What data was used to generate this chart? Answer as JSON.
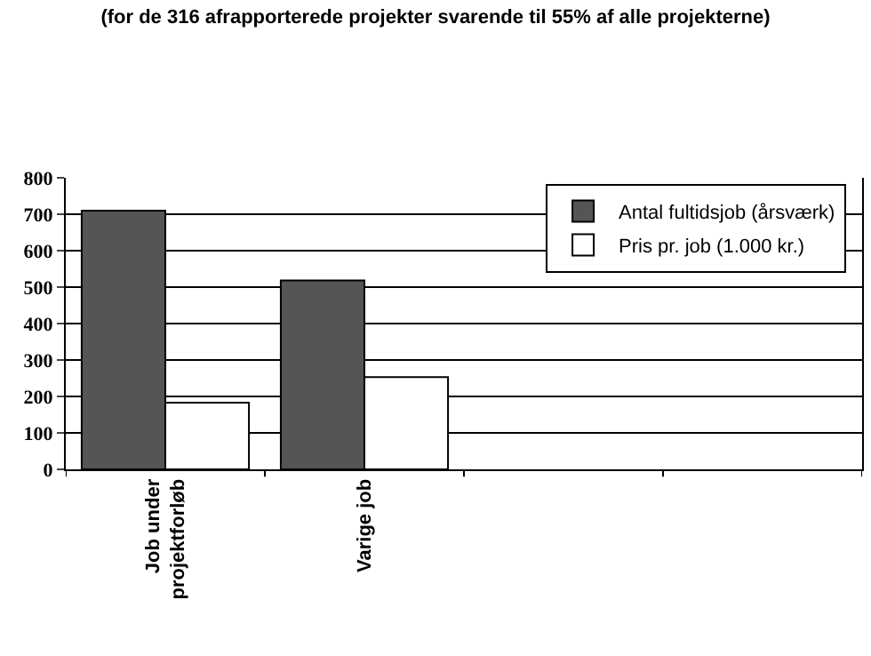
{
  "chart_data": {
    "type": "bar",
    "title": "(for de 316 afrapporterede projekter svarende til 55% af alle projekterne)",
    "categories": [
      "Job under projektforløb",
      "Varige job",
      null,
      null
    ],
    "series": [
      {
        "name": "Antal fultidsjob (årsværk)",
        "color": "#555555",
        "values": [
          710,
          518,
          null,
          null
        ]
      },
      {
        "name": "Pris pr. job (1.000 kr.)",
        "color": "#ffffff",
        "values": [
          183,
          253,
          null,
          null
        ]
      }
    ],
    "ylim": [
      0,
      800
    ],
    "yticks": [
      0,
      100,
      200,
      300,
      400,
      500,
      600,
      700,
      800
    ],
    "grid": "y",
    "legend": "top right"
  }
}
